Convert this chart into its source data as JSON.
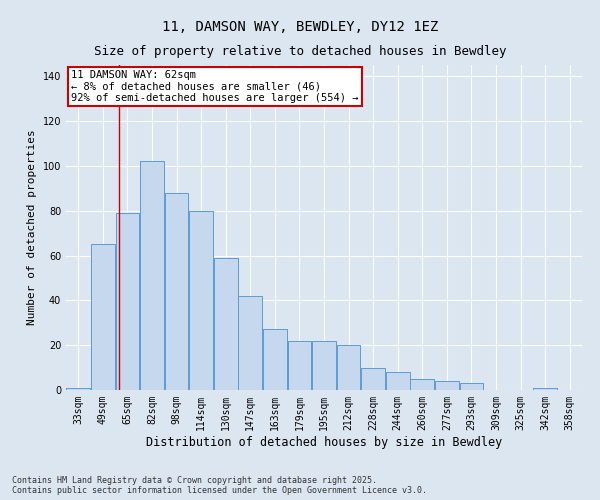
{
  "title1": "11, DAMSON WAY, BEWDLEY, DY12 1EZ",
  "title2": "Size of property relative to detached houses in Bewdley",
  "xlabel": "Distribution of detached houses by size in Bewdley",
  "ylabel": "Number of detached properties",
  "bar_labels": [
    "33sqm",
    "49sqm",
    "65sqm",
    "82sqm",
    "98sqm",
    "114sqm",
    "130sqm",
    "147sqm",
    "163sqm",
    "179sqm",
    "195sqm",
    "212sqm",
    "228sqm",
    "244sqm",
    "260sqm",
    "277sqm",
    "293sqm",
    "309sqm",
    "325sqm",
    "342sqm",
    "358sqm"
  ],
  "bar_values": [
    1,
    65,
    79,
    102,
    88,
    80,
    59,
    42,
    27,
    22,
    22,
    20,
    10,
    8,
    5,
    4,
    3,
    0,
    0,
    1,
    0
  ],
  "bar_color": "#c5d8ed",
  "bar_edge_color": "#5b9bd5",
  "background_color": "#dce6f1",
  "grid_color": "#ffffff",
  "red_line_x": 1.65,
  "annotation_title": "11 DAMSON WAY: 62sqm",
  "annotation_line2": "← 8% of detached houses are smaller (46)",
  "annotation_line3": "92% of semi-detached houses are larger (554) →",
  "annotation_box_color": "#ffffff",
  "annotation_box_edge": "#cc0000",
  "red_line_color": "#cc0000",
  "footnote1": "Contains HM Land Registry data © Crown copyright and database right 2025.",
  "footnote2": "Contains public sector information licensed under the Open Government Licence v3.0.",
  "ylim": [
    0,
    145
  ],
  "title1_fontsize": 10,
  "title2_fontsize": 9,
  "xlabel_fontsize": 8.5,
  "ylabel_fontsize": 8,
  "tick_fontsize": 7,
  "annot_fontsize": 7.5
}
